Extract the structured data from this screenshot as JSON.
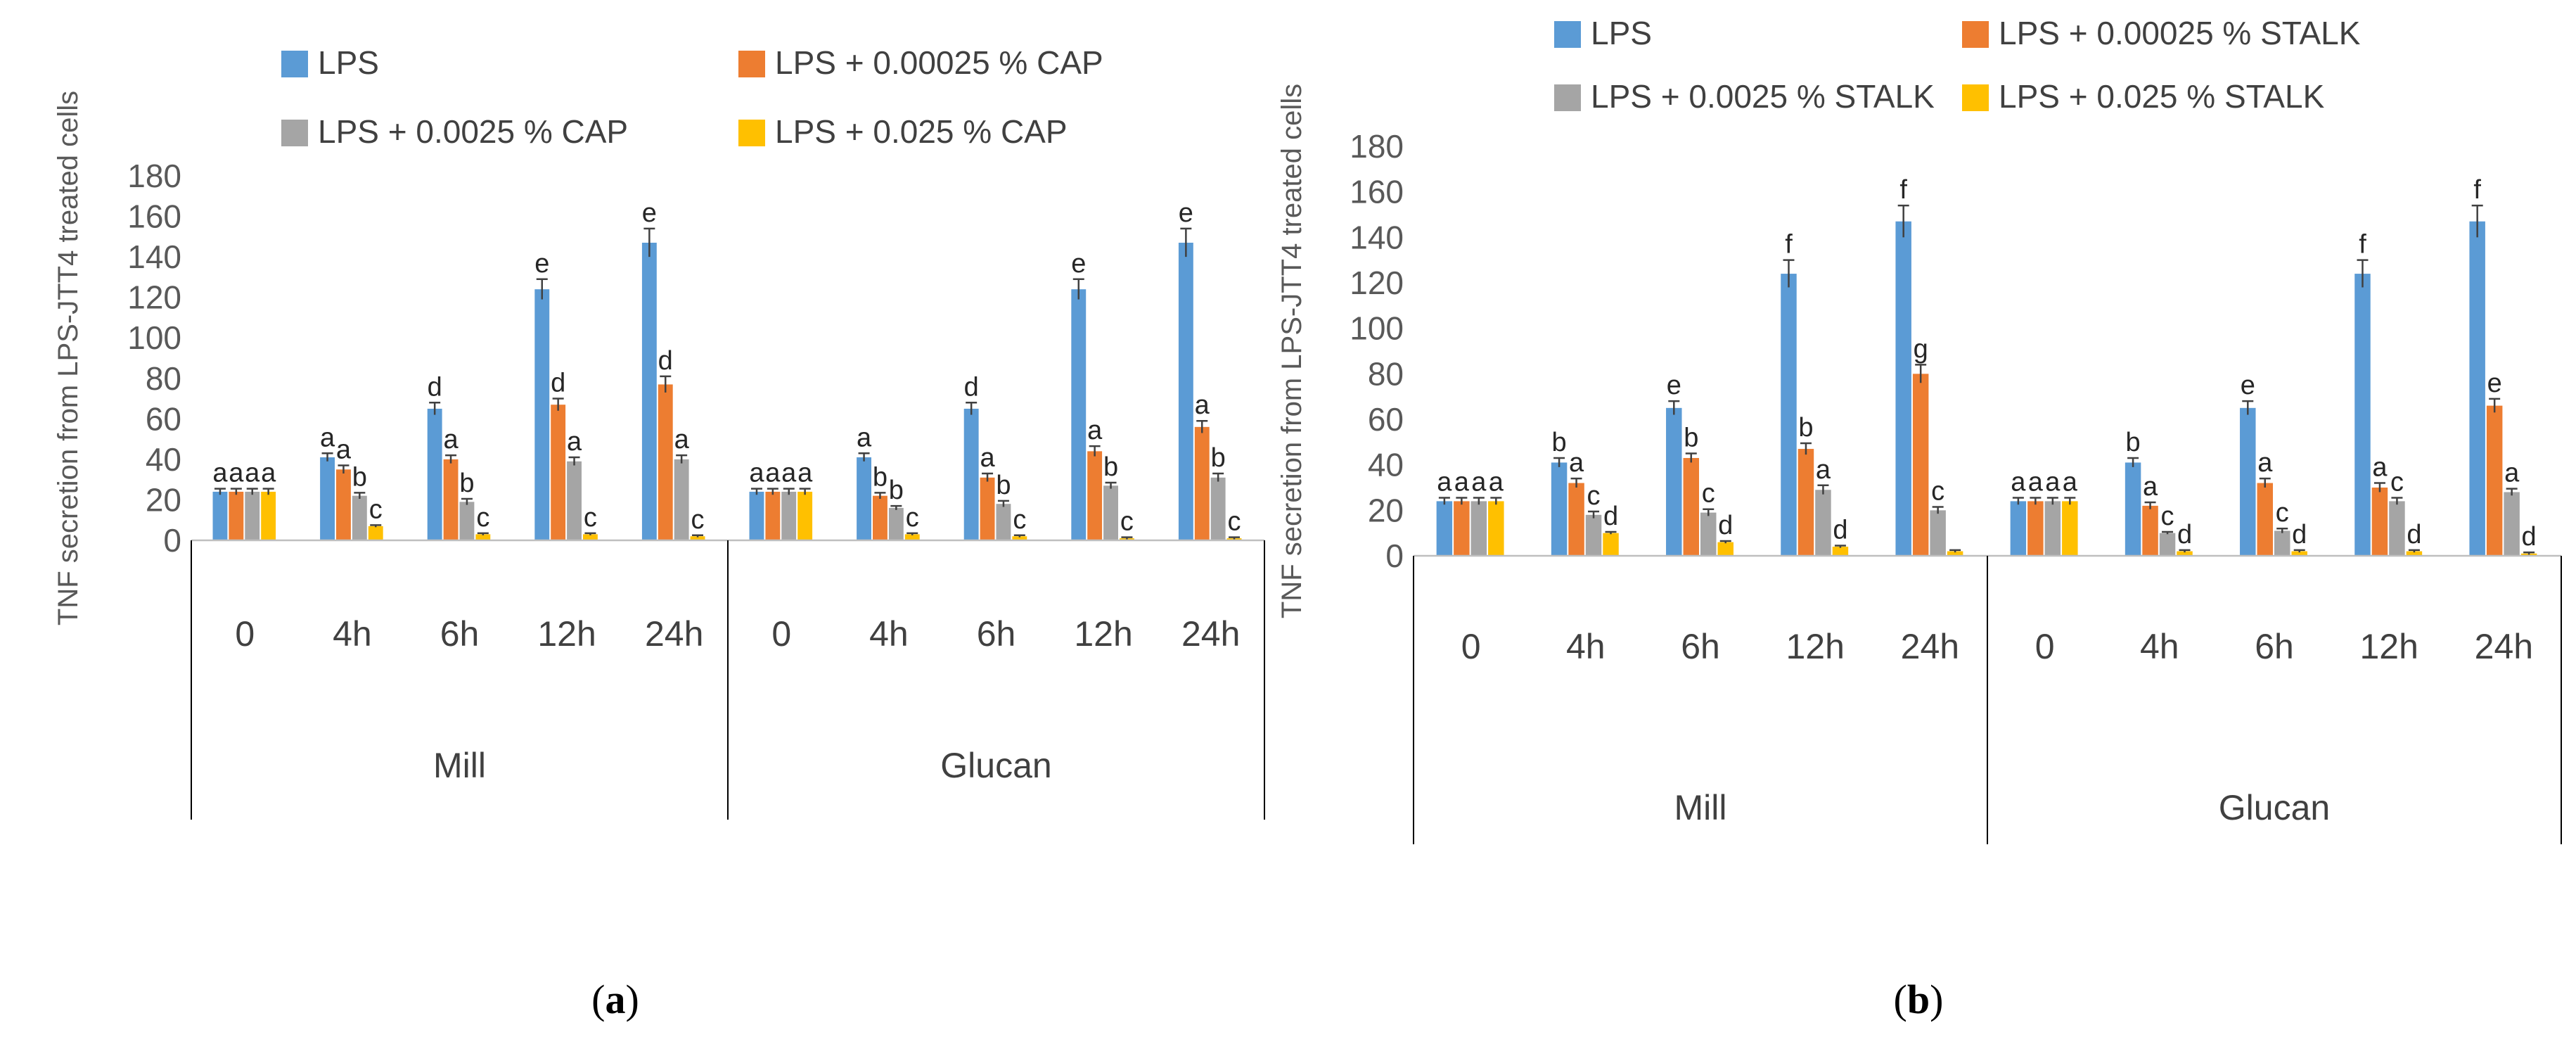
{
  "colors": {
    "LPS": "#5B9BD5",
    "low": "#ED7D31",
    "mid": "#A5A5A5",
    "high": "#FFC000"
  },
  "chart_data": [
    {
      "type": "bar",
      "panel_label": "(a)",
      "panel_letter": "a",
      "ylabel": "TNF secretion from LPS-JTT4 treated cells",
      "ylim": [
        0,
        180
      ],
      "yticks": [
        0,
        20,
        40,
        60,
        80,
        100,
        120,
        140,
        160,
        180
      ],
      "groups": [
        {
          "name": "Mill",
          "categories": [
            "0",
            "4h",
            "6h",
            "12h",
            "24h"
          ]
        },
        {
          "name": "Glucan",
          "categories": [
            "0",
            "4h",
            "6h",
            "12h",
            "24h"
          ]
        }
      ],
      "categories": [
        "0",
        "4h",
        "6h",
        "12h",
        "24h",
        "0",
        "4h",
        "6h",
        "12h",
        "24h"
      ],
      "series": [
        {
          "name": "LPS",
          "color_key": "LPS",
          "values": [
            24,
            41,
            65,
            124,
            147,
            24,
            41,
            65,
            124,
            147
          ],
          "errors": [
            1.5,
            2,
            3,
            5,
            7,
            1.5,
            2,
            3,
            5,
            7
          ],
          "labels": [
            "a",
            "a",
            "d",
            "e",
            "e",
            "a",
            "a",
            "d",
            "e",
            "e"
          ]
        },
        {
          "name": "LPS + 0.00025 % CAP",
          "color_key": "low",
          "values": [
            24,
            35,
            40,
            67,
            77,
            24,
            22,
            31,
            44,
            56
          ],
          "errors": [
            1.5,
            2,
            2,
            3,
            4,
            1.5,
            1.5,
            2,
            2.5,
            3
          ],
          "labels": [
            "a",
            "a",
            "a",
            "d",
            "d",
            "a",
            "b",
            "a",
            "a",
            "a"
          ]
        },
        {
          "name": "LPS + 0.0025 % CAP",
          "color_key": "mid",
          "values": [
            24,
            22,
            19,
            39,
            40,
            24,
            16,
            18,
            27,
            31
          ],
          "errors": [
            1.5,
            1.5,
            1.5,
            2,
            2,
            1.5,
            1,
            1.5,
            1.5,
            2
          ],
          "labels": [
            "a",
            "b",
            "b",
            "a",
            "a",
            "a",
            "b",
            "b",
            "b",
            "b"
          ]
        },
        {
          "name": "LPS + 0.025 % CAP",
          "color_key": "high",
          "values": [
            24,
            7,
            3,
            3,
            2,
            24,
            3,
            2,
            1,
            1
          ],
          "errors": [
            1.5,
            0.5,
            0.5,
            0.5,
            0.5,
            1.5,
            0.5,
            0.5,
            0.5,
            0.5
          ],
          "labels": [
            "a",
            "c",
            "c",
            "c",
            "c",
            "a",
            "c",
            "c",
            "c",
            "c"
          ]
        }
      ],
      "legend": "top"
    },
    {
      "type": "bar",
      "panel_label": "(b)",
      "panel_letter": "b",
      "ylabel": "TNF secretion from LPS-JTT4 treated cells",
      "ylim": [
        0,
        180
      ],
      "yticks": [
        0,
        20,
        40,
        60,
        80,
        100,
        120,
        140,
        160,
        180
      ],
      "groups": [
        {
          "name": "Mill",
          "categories": [
            "0",
            "4h",
            "6h",
            "12h",
            "24h"
          ]
        },
        {
          "name": "Glucan",
          "categories": [
            "0",
            "4h",
            "6h",
            "12h",
            "24h"
          ]
        }
      ],
      "categories": [
        "0",
        "4h",
        "6h",
        "12h",
        "24h",
        "0",
        "4h",
        "6h",
        "12h",
        "24h"
      ],
      "series": [
        {
          "name": "LPS",
          "color_key": "LPS",
          "values": [
            24,
            41,
            65,
            124,
            147,
            24,
            41,
            65,
            124,
            147
          ],
          "errors": [
            1.5,
            2,
            3,
            6,
            7,
            1.5,
            2,
            3,
            6,
            7
          ],
          "labels": [
            "a",
            "b",
            "e",
            "f",
            "f",
            "a",
            "b",
            "e",
            "f",
            "f"
          ]
        },
        {
          "name": "LPS + 0.00025 % STALK",
          "color_key": "low",
          "values": [
            24,
            32,
            43,
            47,
            80,
            24,
            22,
            32,
            30,
            66
          ],
          "errors": [
            1.5,
            2,
            2,
            2.5,
            4,
            1.5,
            1.5,
            2,
            2,
            3
          ],
          "labels": [
            "a",
            "a",
            "b",
            "b",
            "g",
            "a",
            "a",
            "a",
            "a",
            "e"
          ]
        },
        {
          "name": "LPS + 0.0025 % STALK",
          "color_key": "mid",
          "values": [
            24,
            18,
            19,
            29,
            20,
            24,
            10,
            11,
            24,
            28
          ],
          "errors": [
            1.5,
            1.5,
            1.5,
            2,
            1.5,
            1.5,
            0.5,
            1,
            1.5,
            1.5
          ],
          "labels": [
            "a",
            "c",
            "c",
            "a",
            "c",
            "a",
            "c",
            "c",
            "c",
            "a"
          ]
        },
        {
          "name": "LPS + 0.025 % STALK",
          "color_key": "high",
          "values": [
            24,
            10,
            6,
            4,
            2,
            24,
            2,
            2,
            2,
            1
          ],
          "errors": [
            1.5,
            0.5,
            0.5,
            0.5,
            0.5,
            1.5,
            0.5,
            0.5,
            0.5,
            0.5
          ],
          "labels": [
            "a",
            "d",
            "d",
            "d",
            "",
            "a",
            "d",
            "d",
            "d",
            "d"
          ]
        }
      ],
      "legend": "top"
    }
  ]
}
